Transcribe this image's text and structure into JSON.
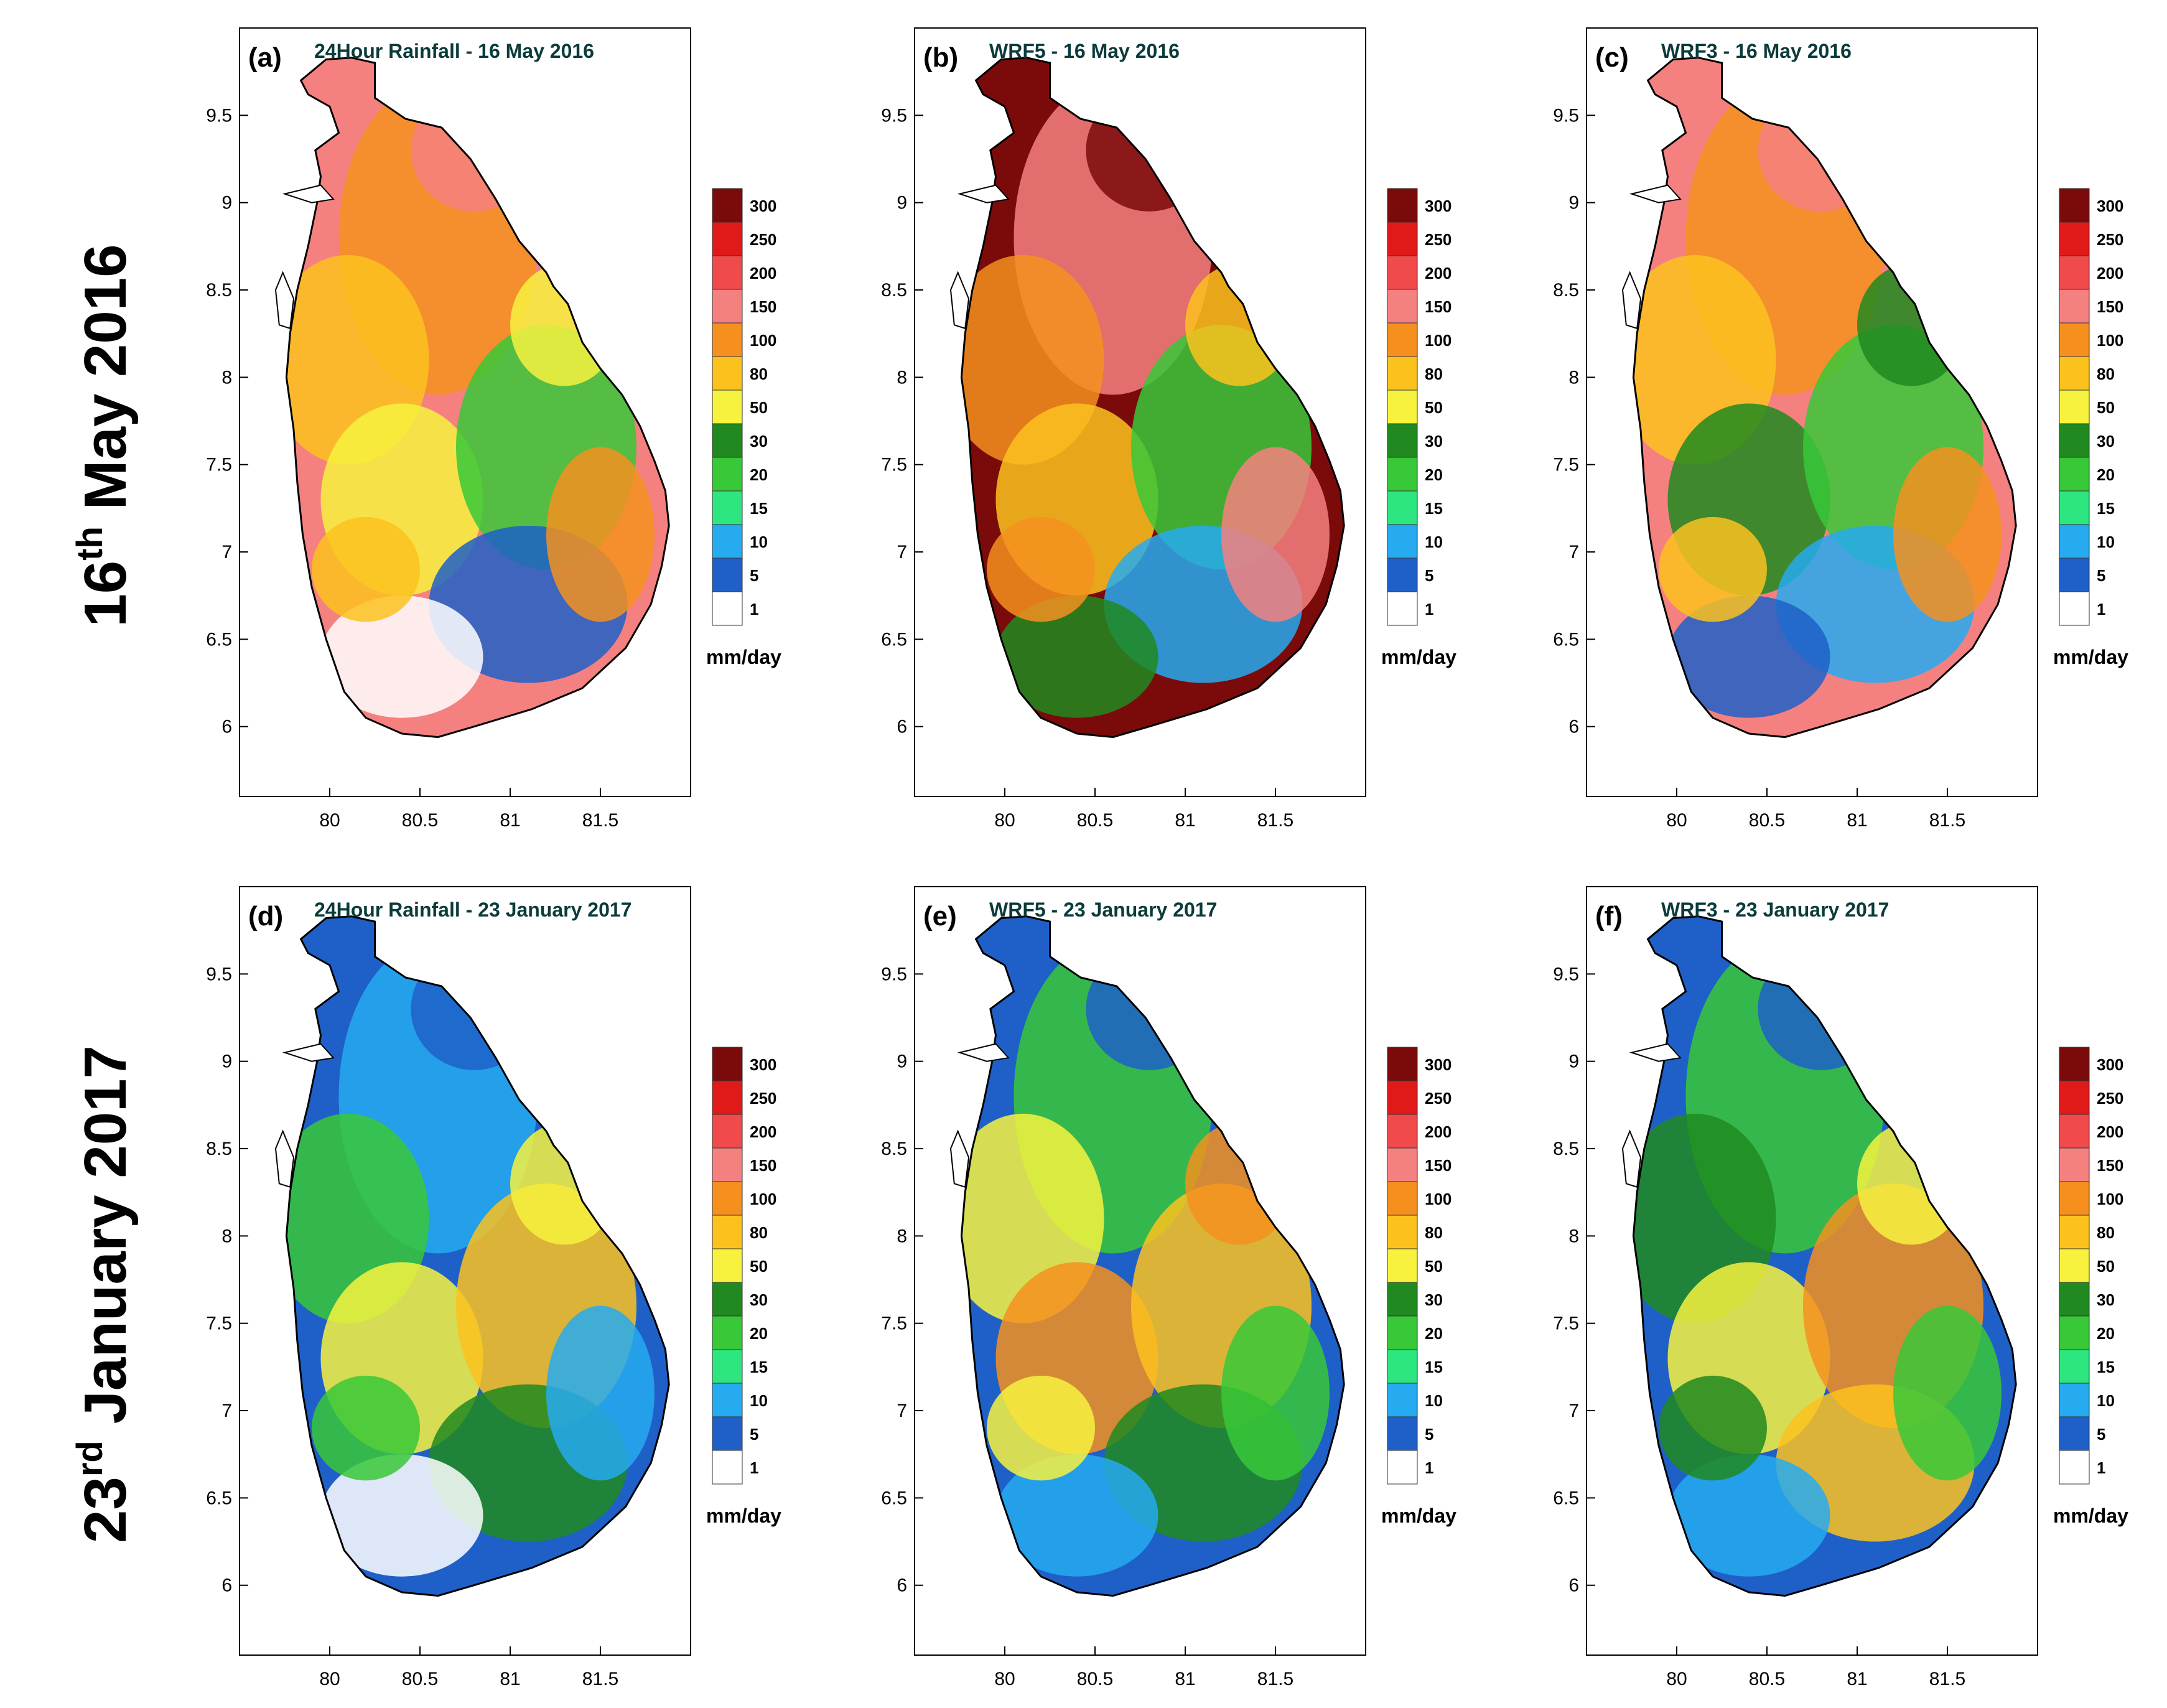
{
  "figure": {
    "row_labels": [
      {
        "ordinal": "16",
        "suffix": "th",
        "rest": " May 2016"
      },
      {
        "ordinal": "23",
        "suffix": "rd",
        "rest": " January 2017"
      }
    ],
    "axis": {
      "x_ticks": [
        "80",
        "80.5",
        "81",
        "81.5"
      ],
      "y_ticks": [
        "9.5",
        "9",
        "8.5",
        "8",
        "7.5",
        "7",
        "6.5",
        "6"
      ]
    },
    "legend": {
      "unit": "mm/day",
      "levels": [
        "300",
        "250",
        "200",
        "150",
        "100",
        "80",
        "50",
        "30",
        "20",
        "15",
        "10",
        "5",
        "1"
      ],
      "colors": [
        "#7b0a0a",
        "#e01919",
        "#f04a4a",
        "#f58080",
        "#f5901f",
        "#fbc21e",
        "#f7f23e",
        "#208a20",
        "#38c838",
        "#2ee680",
        "#26aaf0",
        "#1f60c8",
        "#ffffff"
      ]
    },
    "panels": [
      {
        "letter": "(a)",
        "title": "24Hour Rainfall - 16 May 2016",
        "scheme": [
          "#f58080",
          "#f5901f",
          "#fbc21e",
          "#f7f23e",
          "#38c838",
          "#1f60c8",
          "#ffffff"
        ]
      },
      {
        "letter": "(b)",
        "title": "WRF5 - 16 May 2016",
        "scheme": [
          "#7b0a0a",
          "#f58080",
          "#f5901f",
          "#fbc21e",
          "#38c838",
          "#26aaf0",
          "#208a20"
        ]
      },
      {
        "letter": "(c)",
        "title": "WRF3 - 16 May 2016",
        "scheme": [
          "#f58080",
          "#f5901f",
          "#fbc21e",
          "#208a20",
          "#38c838",
          "#26aaf0",
          "#1f60c8"
        ]
      },
      {
        "letter": "(d)",
        "title": "24Hour Rainfall - 23 January 2017",
        "scheme": [
          "#1f60c8",
          "#26aaf0",
          "#38c838",
          "#f7f23e",
          "#fbc21e",
          "#208a20",
          "#ffffff"
        ]
      },
      {
        "letter": "(e)",
        "title": "WRF5 - 23 January 2017",
        "scheme": [
          "#1f60c8",
          "#38c838",
          "#f7f23e",
          "#f5901f",
          "#fbc21e",
          "#208a20",
          "#26aaf0"
        ]
      },
      {
        "letter": "(f)",
        "title": "WRF3 - 23 January 2017",
        "scheme": [
          "#1f60c8",
          "#38c838",
          "#208a20",
          "#f7f23e",
          "#f5901f",
          "#fbc21e",
          "#26aaf0"
        ]
      }
    ]
  }
}
